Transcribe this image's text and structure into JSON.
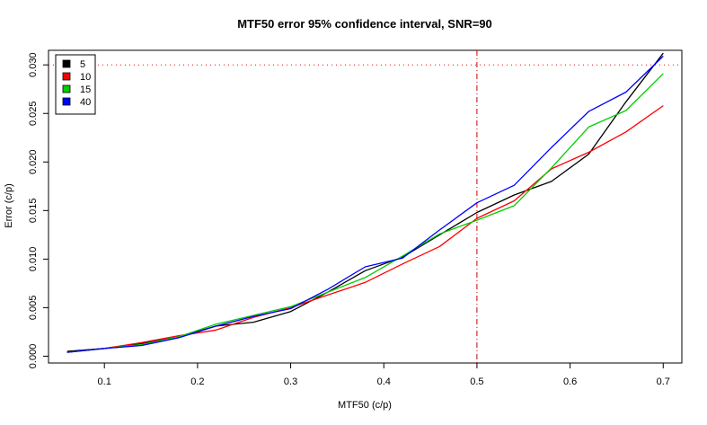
{
  "chart_data": {
    "type": "line",
    "title": "MTF50 error 95% confidence interval, SNR=90",
    "xlabel": "MTF50 (c/p)",
    "ylabel": "Error (c/p)",
    "xlim": [
      0.04,
      0.72
    ],
    "ylim": [
      -0.0007,
      0.0315
    ],
    "x_ticks": [
      0.1,
      0.2,
      0.3,
      0.4,
      0.5,
      0.6,
      0.7
    ],
    "x_tick_labels": [
      "0.1",
      "0.2",
      "0.3",
      "0.4",
      "0.5",
      "0.6",
      "0.7"
    ],
    "y_ticks": [
      0.0,
      0.005,
      0.01,
      0.015,
      0.02,
      0.025,
      0.03
    ],
    "y_tick_labels": [
      "0.000",
      "0.005",
      "0.010",
      "0.015",
      "0.020",
      "0.025",
      "0.030"
    ],
    "grid": false,
    "legend_position": "top-left",
    "reference_lines": {
      "horizontal": {
        "y": 0.03,
        "color": "#ff0000",
        "style": "dotted"
      },
      "vertical": {
        "x": 0.5,
        "color": "#cc0000",
        "style": "dashdot"
      }
    },
    "series": [
      {
        "name": "5",
        "color": "#000000",
        "x": [
          0.06,
          0.1,
          0.14,
          0.18,
          0.22,
          0.26,
          0.3,
          0.34,
          0.38,
          0.42,
          0.46,
          0.5,
          0.54,
          0.58,
          0.62,
          0.66,
          0.7
        ],
        "y": [
          0.0005,
          0.0008,
          0.0013,
          0.002,
          0.0031,
          0.0035,
          0.0046,
          0.0066,
          0.0088,
          0.0102,
          0.0125,
          0.0148,
          0.0166,
          0.018,
          0.0208,
          0.0262,
          0.0312
        ]
      },
      {
        "name": "10",
        "color": "#ff0000",
        "x": [
          0.06,
          0.1,
          0.14,
          0.18,
          0.22,
          0.26,
          0.3,
          0.34,
          0.38,
          0.42,
          0.46,
          0.5,
          0.54,
          0.58,
          0.62,
          0.66,
          0.7
        ],
        "y": [
          0.0004,
          0.0008,
          0.0014,
          0.0021,
          0.0027,
          0.004,
          0.005,
          0.0063,
          0.0076,
          0.0095,
          0.0113,
          0.0142,
          0.016,
          0.0193,
          0.021,
          0.0231,
          0.0258
        ]
      },
      {
        "name": "15",
        "color": "#00cc00",
        "x": [
          0.06,
          0.1,
          0.14,
          0.18,
          0.22,
          0.26,
          0.3,
          0.34,
          0.38,
          0.42,
          0.46,
          0.5,
          0.54,
          0.58,
          0.62,
          0.66,
          0.7
        ],
        "y": [
          0.0004,
          0.0008,
          0.0012,
          0.002,
          0.0033,
          0.0042,
          0.0051,
          0.0066,
          0.0081,
          0.0103,
          0.0126,
          0.014,
          0.0155,
          0.0194,
          0.0236,
          0.0253,
          0.0291
        ]
      },
      {
        "name": "40",
        "color": "#0000ff",
        "x": [
          0.06,
          0.1,
          0.14,
          0.18,
          0.22,
          0.26,
          0.3,
          0.34,
          0.38,
          0.42,
          0.46,
          0.5,
          0.54,
          0.58,
          0.62,
          0.66,
          0.7
        ],
        "y": [
          0.0004,
          0.0008,
          0.0011,
          0.0019,
          0.0031,
          0.0041,
          0.0049,
          0.0069,
          0.0092,
          0.0101,
          0.013,
          0.0158,
          0.0176,
          0.0215,
          0.0252,
          0.0272,
          0.0309
        ]
      }
    ]
  }
}
